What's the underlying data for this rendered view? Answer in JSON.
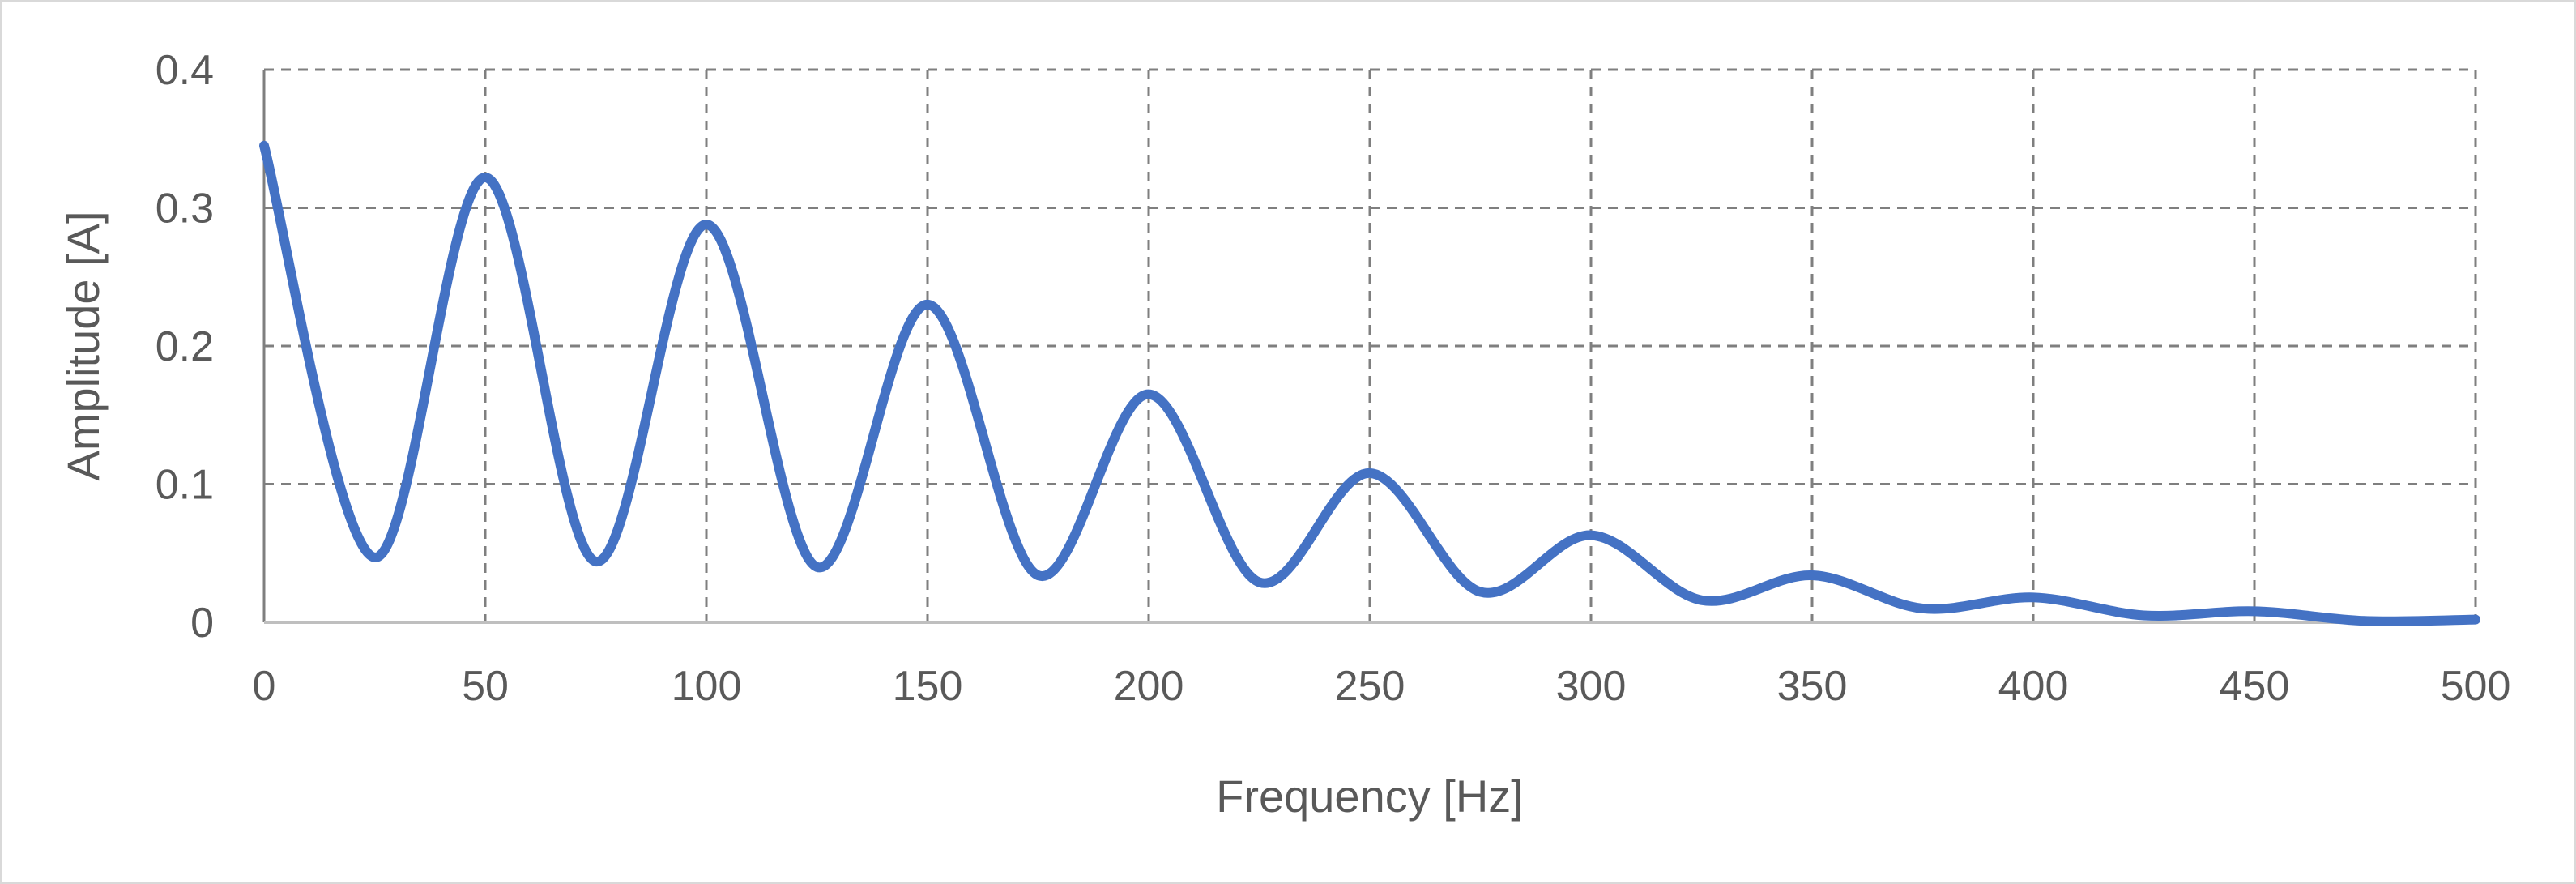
{
  "chart_data": {
    "type": "line",
    "title": "",
    "xlabel": "Frequency [Hz]",
    "ylabel": "Amplitude [A]",
    "xlim": [
      0,
      500
    ],
    "ylim": [
      0,
      0.4
    ],
    "x_ticks": [
      "0",
      "50",
      "100",
      "150",
      "200",
      "250",
      "300",
      "350",
      "400",
      "450",
      "500"
    ],
    "y_ticks": [
      "0",
      "0.1",
      "0.2",
      "0.3",
      "0.4"
    ],
    "grid": true,
    "legend": "none",
    "series": [
      {
        "color": "#4472c4",
        "x": [
          0,
          25,
          50,
          75,
          100,
          125,
          150,
          175,
          200,
          225,
          250,
          275,
          300,
          325,
          350,
          375,
          400,
          425,
          450,
          475,
          500
        ],
        "y": [
          0.345,
          0.047,
          0.322,
          0.044,
          0.288,
          0.04,
          0.23,
          0.034,
          0.165,
          0.029,
          0.108,
          0.022,
          0.063,
          0.016,
          0.034,
          0.01,
          0.018,
          0.005,
          0.008,
          0.001,
          0.002
        ]
      }
    ]
  }
}
